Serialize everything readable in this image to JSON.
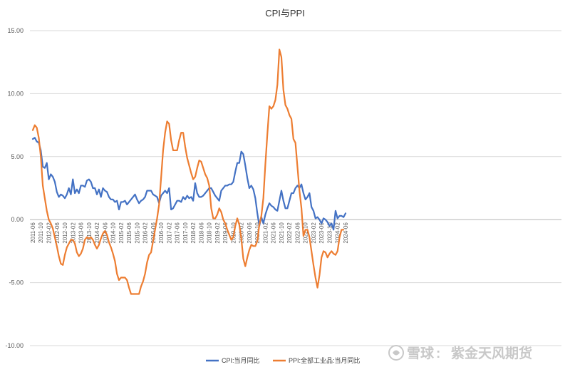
{
  "chart_data": {
    "type": "line",
    "title": "CPI与PPI",
    "ylim": [
      -10,
      15
    ],
    "yticks": [
      "15.00",
      "10.00",
      "5.00",
      "0.00",
      "-5.00",
      "-10.00"
    ],
    "ytick_values": [
      15,
      10,
      5,
      0,
      -5,
      -10
    ],
    "grid": "horizontal",
    "legend_position": "bottom",
    "x_tick_labels": [
      "2011-06",
      "2011-10",
      "2012-02",
      "2012-06",
      "2012-10",
      "2013-02",
      "2013-06",
      "2013-10",
      "2014-02",
      "2014-06",
      "2014-10",
      "2015-02",
      "2015-06",
      "2015-10",
      "2016-02",
      "2016-06",
      "2016-10",
      "2017-02",
      "2017-06",
      "2017-10",
      "2018-02",
      "2018-06",
      "2018-10",
      "2019-02",
      "2019-06",
      "2019-10",
      "2020-02",
      "2020-06",
      "2020-10",
      "2021-02",
      "2021-06",
      "2021-10",
      "2022-02",
      "2022-06",
      "2022-10",
      "2023-02",
      "2023-06",
      "2023-10",
      "2024-02",
      "2024-06"
    ],
    "series": [
      {
        "name": "CPI:当月同比",
        "color": "#4472c4",
        "start": "2011-06",
        "values": [
          6.4,
          6.5,
          6.2,
          6.1,
          5.5,
          4.2,
          4.1,
          4.5,
          3.2,
          3.6,
          3.4,
          3.0,
          2.2,
          1.8,
          2.0,
          1.9,
          1.7,
          2.0,
          2.5,
          2.0,
          3.2,
          2.1,
          2.4,
          2.1,
          2.7,
          2.7,
          2.6,
          3.1,
          3.2,
          3.0,
          2.5,
          2.5,
          2.0,
          2.4,
          1.8,
          2.5,
          2.3,
          2.2,
          1.8,
          1.6,
          1.6,
          1.4,
          1.5,
          0.8,
          1.4,
          1.4,
          1.5,
          1.2,
          1.4,
          1.6,
          1.8,
          2.0,
          1.6,
          1.3,
          1.5,
          1.6,
          1.8,
          2.3,
          2.3,
          2.3,
          2.0,
          1.9,
          1.8,
          1.3,
          1.9,
          2.1,
          2.3,
          2.1,
          2.5,
          0.8,
          0.9,
          1.2,
          1.5,
          1.5,
          1.4,
          1.8,
          1.6,
          1.9,
          1.7,
          1.8,
          1.5,
          2.9,
          2.1,
          1.8,
          1.8,
          1.9,
          2.1,
          2.3,
          2.5,
          2.5,
          2.2,
          1.9,
          1.7,
          1.5,
          2.3,
          2.5,
          2.7,
          2.7,
          2.8,
          2.8,
          3.0,
          3.8,
          4.5,
          4.5,
          5.4,
          5.2,
          4.3,
          3.3,
          2.5,
          2.7,
          2.4,
          1.7,
          0.5,
          -0.5,
          0.2,
          -0.3,
          0.4,
          0.9,
          1.3,
          1.1,
          1.0,
          0.8,
          0.7,
          1.5,
          2.3,
          1.5,
          0.9,
          0.9,
          1.5,
          2.1,
          2.1,
          2.5,
          2.7,
          2.5,
          2.8,
          2.1,
          1.6,
          1.8,
          2.1,
          1.0,
          0.7,
          0.1,
          0.2,
          0.0,
          -0.3,
          0.1,
          0.0,
          -0.2,
          -0.5,
          -0.3,
          -0.8,
          0.7,
          0.1,
          0.3,
          0.3,
          0.2,
          0.5
        ]
      },
      {
        "name": "PPI:全部工业品:当月同比",
        "color": "#ed7d31",
        "start": "2011-06",
        "values": [
          7.1,
          7.5,
          7.3,
          6.5,
          5.0,
          2.7,
          1.7,
          0.7,
          0.0,
          -0.3,
          -0.7,
          -1.4,
          -2.1,
          -2.9,
          -3.5,
          -3.6,
          -2.8,
          -2.2,
          -1.9,
          -1.6,
          -1.6,
          -1.9,
          -2.6,
          -2.9,
          -2.7,
          -2.3,
          -1.6,
          -1.4,
          -1.5,
          -1.4,
          -1.6,
          -2.0,
          -2.3,
          -2.0,
          -1.5,
          -1.1,
          -0.9,
          -1.2,
          -1.8,
          -2.2,
          -2.7,
          -3.3,
          -4.3,
          -4.8,
          -4.6,
          -4.6,
          -4.6,
          -4.8,
          -5.4,
          -5.9,
          -5.9,
          -5.9,
          -5.9,
          -5.9,
          -5.3,
          -4.9,
          -4.3,
          -3.4,
          -2.8,
          -2.6,
          -1.7,
          -0.8,
          0.1,
          1.2,
          3.3,
          5.5,
          6.9,
          7.8,
          7.6,
          6.3,
          5.5,
          5.5,
          5.5,
          6.3,
          6.9,
          6.9,
          5.8,
          4.9,
          4.3,
          3.7,
          3.2,
          3.4,
          4.1,
          4.7,
          4.6,
          4.1,
          3.6,
          3.3,
          2.7,
          0.9,
          0.1,
          0.1,
          0.4,
          0.9,
          0.6,
          0.0,
          -0.3,
          -0.8,
          -1.2,
          -1.6,
          -1.4,
          -0.5,
          0.1,
          -0.4,
          -1.5,
          -3.1,
          -3.7,
          -3.0,
          -2.4,
          -2.0,
          -2.1,
          -2.1,
          -1.7,
          -0.4,
          0.3,
          1.7,
          4.4,
          6.8,
          9.0,
          8.8,
          9.0,
          9.5,
          10.7,
          13.5,
          12.9,
          10.3,
          9.1,
          8.8,
          8.3,
          8.0,
          6.4,
          6.1,
          4.2,
          2.3,
          0.9,
          -1.3,
          -0.8,
          -0.8,
          -1.4,
          -2.5,
          -3.6,
          -4.6,
          -5.4,
          -4.4,
          -3.0,
          -2.5,
          -2.6,
          -3.0,
          -2.7,
          -2.5,
          -2.7,
          -2.8,
          -2.5,
          -1.4,
          -0.8,
          -0.8
        ]
      }
    ]
  },
  "watermark": {
    "brand": "雪球",
    "separator": ":",
    "author": "紫金天风期货"
  }
}
